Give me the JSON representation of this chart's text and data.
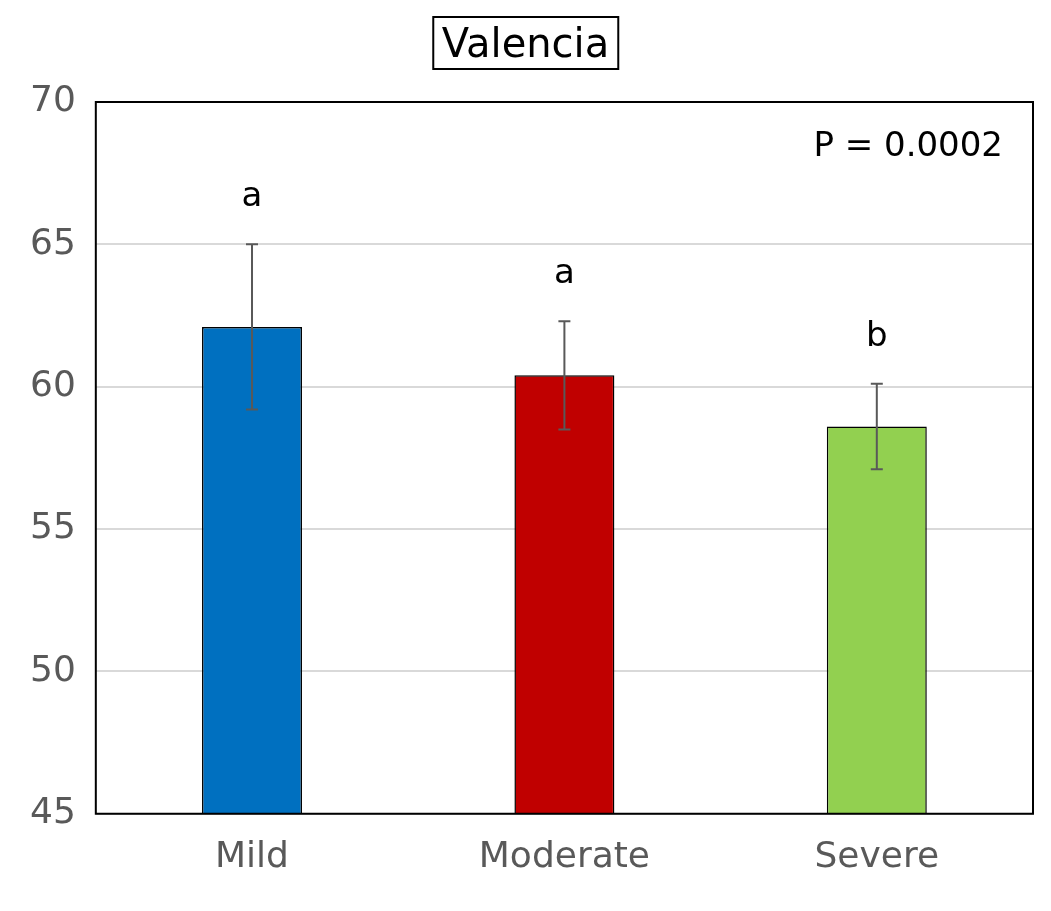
{
  "chart_data": {
    "type": "bar",
    "title": "Valencia",
    "categories": [
      "Mild",
      "Moderate",
      "Severe"
    ],
    "values": [
      62.1,
      60.4,
      58.6
    ],
    "colors": [
      "#0070c0",
      "#c00000",
      "#92d050"
    ],
    "errors": [
      2.9,
      1.9,
      1.5
    ],
    "ylim": [
      45,
      70
    ],
    "yticks": [
      45,
      50,
      55,
      60,
      65,
      70
    ],
    "grid": "y",
    "legend": false,
    "annotations": [
      "P = 0.0002",
      "a",
      "a",
      "b"
    ]
  }
}
